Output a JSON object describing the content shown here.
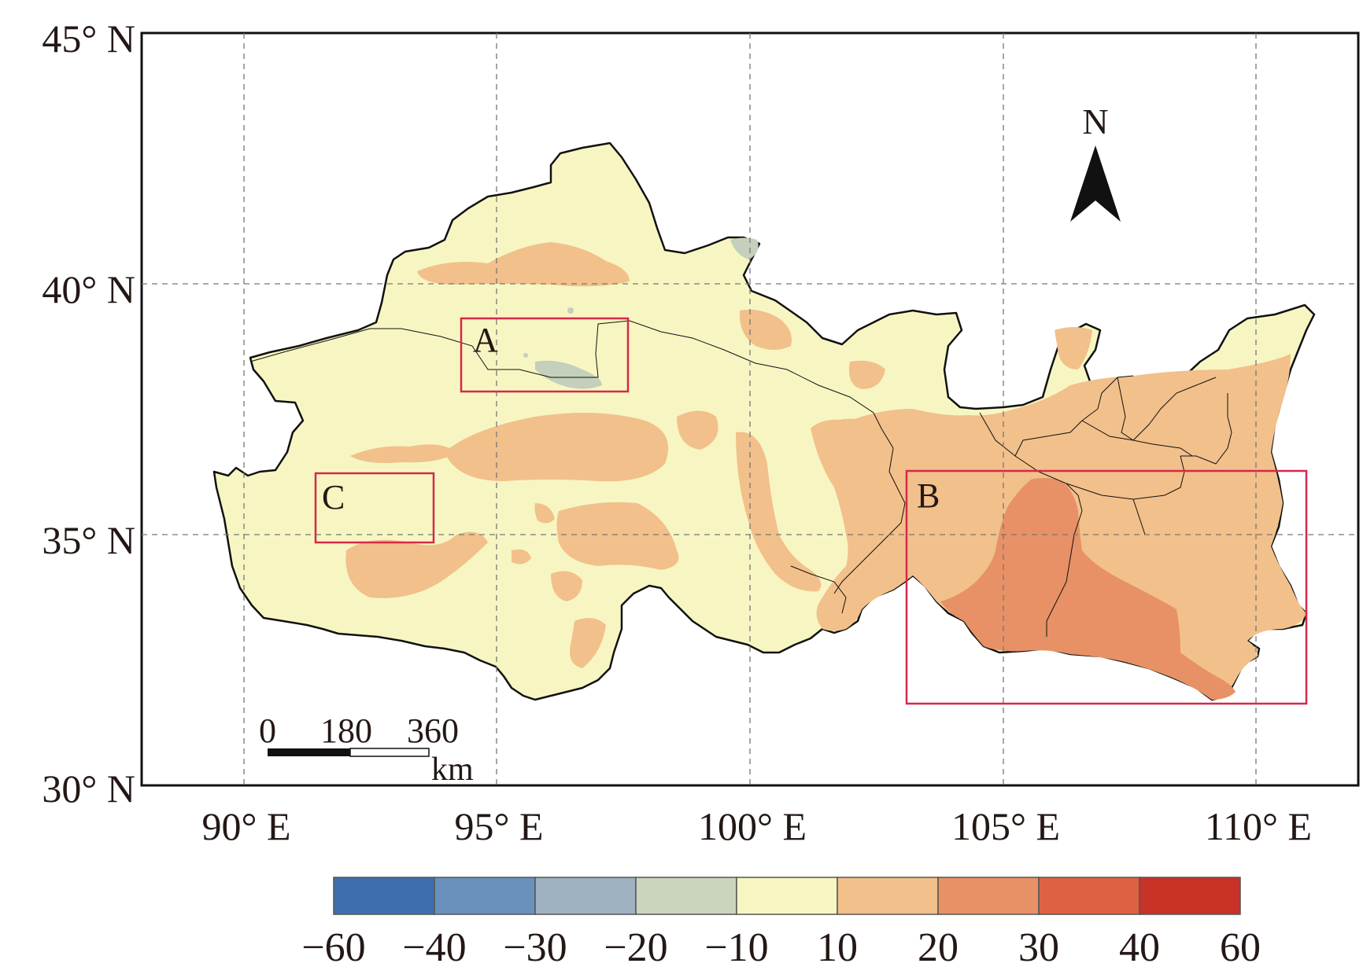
{
  "map": {
    "lat_labels": [
      "45° N",
      "40° N",
      "35° N",
      "30° N"
    ],
    "lon_labels": [
      "90° E",
      "95° E",
      "100° E",
      "105° E",
      "110° E"
    ],
    "regions": [
      {
        "id": "A",
        "label": "A"
      },
      {
        "id": "B",
        "label": "B"
      },
      {
        "id": "C",
        "label": "C"
      }
    ],
    "north_arrow": "N",
    "scale_bar": {
      "ticks": [
        "0",
        "180",
        "360"
      ],
      "unit": "km"
    },
    "colors": {
      "background": "#f7f6c2",
      "light_orange": "#f2c08b",
      "mid_orange": "#e89166",
      "grey_green": "#c4cfbc",
      "box": "#d7284a",
      "outline": "#111111"
    }
  },
  "legend": {
    "tick_labels": [
      "−60",
      "−40",
      "−30",
      "−20",
      "−10",
      "10",
      "20",
      "30",
      "40",
      "60"
    ],
    "colors": [
      "#3f6eae",
      "#6a91bc",
      "#9fb2c1",
      "#cbd4bd",
      "#f7f6c2",
      "#f2c08b",
      "#e89166",
      "#dd6243",
      "#c83227"
    ]
  }
}
